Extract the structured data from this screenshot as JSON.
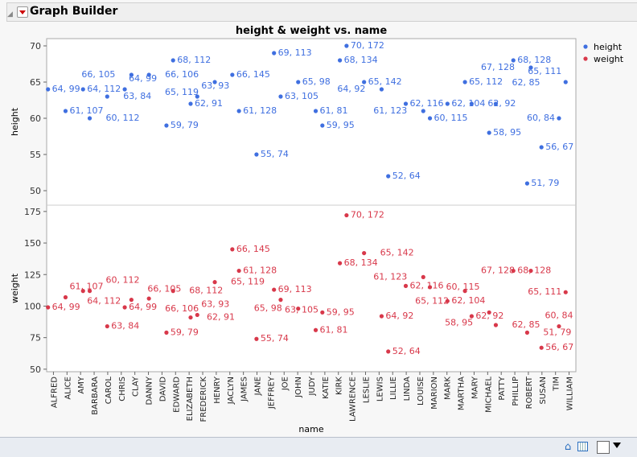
{
  "window": {
    "title": "Graph Builder"
  },
  "chart_data": {
    "type": "scatter",
    "title": "height & weight vs. name",
    "xlabel": "name",
    "panels": [
      {
        "ylabel": "height",
        "ylim": [
          48,
          71
        ],
        "yticks": [
          50,
          55,
          60,
          65,
          70
        ]
      },
      {
        "ylabel": "weight",
        "ylim": [
          48,
          180
        ],
        "yticks": [
          50,
          75,
          100,
          125,
          150,
          175
        ]
      }
    ],
    "categories": [
      "ALFRED",
      "ALICE",
      "AMY",
      "BARBARA",
      "CAROL",
      "CHRIS",
      "CLAY",
      "DANNY",
      "DAVID",
      "EDWARD",
      "ELIZABETH",
      "FREDERICK",
      "HENRY",
      "JACLYN",
      "JAMES",
      "JANE",
      "JEFFREY",
      "JOE",
      "JOHN",
      "JUDY",
      "KATIE",
      "KIRK",
      "LAWRENCE",
      "LESLIE",
      "LEWIS",
      "LILLIE",
      "LINDA",
      "LOUISE",
      "MARION",
      "MARK",
      "MARTHA",
      "MARY",
      "MICHAEL",
      "PATTY",
      "PHILLIP",
      "ROBERT",
      "SUSAN",
      "TIM",
      "WILLIAM"
    ],
    "points": [
      [
        "ALFRED",
        64,
        99
      ],
      [
        "ALICE",
        61,
        107
      ],
      [
        "AMY",
        64,
        112
      ],
      [
        "BARBARA",
        60,
        112
      ],
      [
        "CAROL",
        63,
        84
      ],
      [
        "CHRIS",
        64,
        99
      ],
      [
        "CLAY",
        66,
        105
      ],
      [
        "DANNY",
        66,
        106
      ],
      [
        "DAVID",
        59,
        79
      ],
      [
        "EDWARD",
        68,
        112
      ],
      [
        "ELIZABETH",
        62,
        91
      ],
      [
        "FREDERICK",
        63,
        93
      ],
      [
        "HENRY",
        65,
        119
      ],
      [
        "JACLYN",
        66,
        145
      ],
      [
        "JAMES",
        61,
        128
      ],
      [
        "JANE",
        55,
        74
      ],
      [
        "JEFFREY",
        69,
        113
      ],
      [
        "JOE",
        63,
        105
      ],
      [
        "JOHN",
        65,
        98
      ],
      [
        "JUDY",
        61,
        81
      ],
      [
        "KATIE",
        59,
        95
      ],
      [
        "KIRK",
        68,
        134
      ],
      [
        "LAWRENCE",
        70,
        172
      ],
      [
        "LESLIE",
        65,
        142
      ],
      [
        "LEWIS",
        64,
        92
      ],
      [
        "LILLIE",
        52,
        64
      ],
      [
        "LINDA",
        62,
        116
      ],
      [
        "LOUISE",
        61,
        123
      ],
      [
        "MARION",
        60,
        115
      ],
      [
        "MARK",
        62,
        104
      ],
      [
        "MARTHA",
        65,
        112
      ],
      [
        "MARY",
        62,
        92
      ],
      [
        "MICHAEL",
        58,
        95
      ],
      [
        "PATTY",
        62,
        85
      ],
      [
        "PHILLIP",
        68,
        128
      ],
      [
        "ROBERT",
        67,
        128
      ],
      [
        "ROBERT",
        51,
        79
      ],
      [
        "SUSAN",
        56,
        67
      ],
      [
        "TIM",
        60,
        84
      ],
      [
        "WILLIAM",
        65,
        111
      ]
    ],
    "series": [
      {
        "name": "height",
        "color": "#3f6fe0"
      },
      {
        "name": "weight",
        "color": "#d8384a"
      }
    ],
    "legend": "right",
    "grid": false
  }
}
